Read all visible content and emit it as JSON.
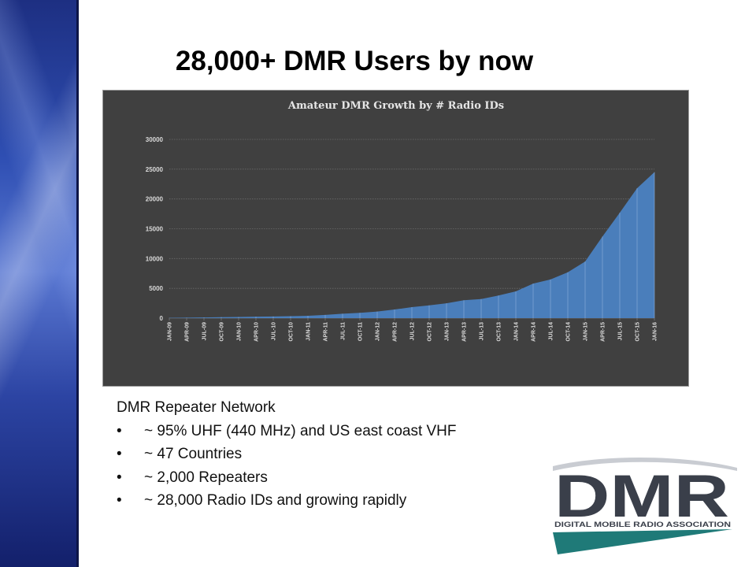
{
  "slide": {
    "title": "28,000+ DMR Users by now",
    "body_heading": "DMR Repeater Network",
    "bullets": [
      "~ 95% UHF (440 MHz) and US east coast VHF",
      "~ 47 Countries",
      "~ 2,000 Repeaters",
      "~ 28,000 Radio IDs and growing rapidly"
    ],
    "bullet_symbol": "•"
  },
  "logo": {
    "text": "DMR",
    "subtitle": "DIGITAL MOBILE RADIO ASSOCIATION",
    "colors": {
      "letters": "#3a3f4a",
      "accent": "#1f7a78"
    }
  },
  "chart_data": {
    "type": "area",
    "title": "Amateur DMR Growth by # Radio IDs",
    "ylim": [
      0,
      30000
    ],
    "yticks": [
      0,
      5000,
      10000,
      15000,
      20000,
      25000,
      30000
    ],
    "grid": true,
    "legend": "none",
    "colors": {
      "fill": "#4a7ebb",
      "background": "#404040",
      "grid": "#6a6a6a",
      "text": "#d9d9d9"
    },
    "xtick_labels": [
      "JAN-09",
      "APR-09",
      "JUL-09",
      "OCT-09",
      "JAN-10",
      "APR-10",
      "JUL-10",
      "OCT-10",
      "JAN-11",
      "APR-11",
      "JUL-11",
      "OCT-11",
      "JAN-12",
      "APR-12",
      "JUL-12",
      "OCT-12",
      "JAN-13",
      "APR-13",
      "JUL-13",
      "OCT-13",
      "JAN-14",
      "APR-14",
      "JUL-14",
      "OCT-14",
      "JAN-15",
      "APR-15",
      "JUL-15",
      "OCT-15",
      "JAN-16"
    ],
    "x": [
      "JAN-09",
      "APR-09",
      "JUL-09",
      "OCT-09",
      "JAN-10",
      "APR-10",
      "JUL-10",
      "OCT-10",
      "JAN-11",
      "APR-11",
      "JUL-11",
      "OCT-11",
      "JAN-12",
      "APR-12",
      "JUL-12",
      "OCT-12",
      "JAN-13",
      "APR-13",
      "JUL-13",
      "OCT-13",
      "JAN-14",
      "APR-14",
      "JUL-14",
      "OCT-14",
      "JAN-15",
      "APR-15",
      "JUL-15",
      "OCT-15",
      "JAN-16"
    ],
    "values": [
      50,
      80,
      120,
      160,
      200,
      240,
      280,
      330,
      400,
      550,
      750,
      900,
      1100,
      1450,
      1850,
      2150,
      2500,
      3000,
      3200,
      3800,
      4500,
      5800,
      6500,
      7700,
      9500,
      13700,
      17700,
      21800,
      24500
    ]
  }
}
